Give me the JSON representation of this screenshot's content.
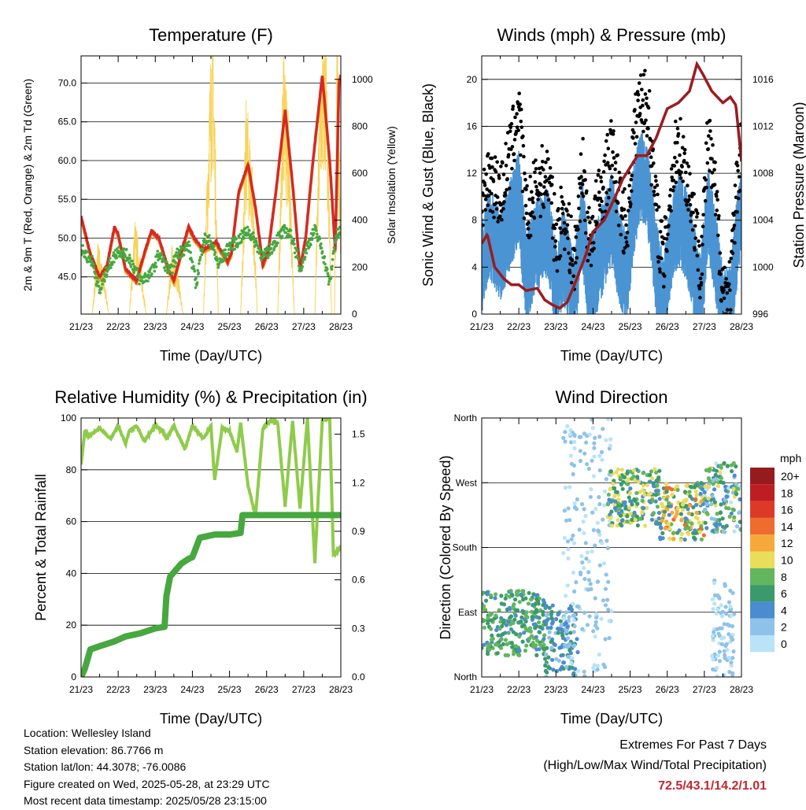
{
  "chart_data": [
    {
      "type": "line",
      "title": "Temperature (F)",
      "xlabel": "Time (Day/UTC)",
      "ylabel": "2m & 9m T (Red, Orange) & 2m Td (Green)",
      "ylabel_right": "Solar Insolation (Yellow)",
      "x_ticks": [
        "21/23",
        "22/23",
        "23/23",
        "24/23",
        "25/23",
        "26/23",
        "27/23",
        "28/23"
      ],
      "ylim": [
        40.2,
        73.5
      ],
      "y_ticks": [
        "45.0",
        "50.0",
        "55.0",
        "60.0",
        "65.0",
        "70.0"
      ],
      "y_tick_values": [
        45,
        50,
        55,
        60,
        65,
        70
      ],
      "ylim_right": [
        0,
        1100
      ],
      "y_ticks_right": [
        "0",
        "200",
        "400",
        "600",
        "800",
        "1000"
      ],
      "y_tick_values_right": [
        0,
        200,
        400,
        600,
        800,
        1000
      ],
      "grid": true,
      "colors": {
        "t2m": "#d42a22",
        "t9m": "#f39a2c",
        "td": "#46a83e",
        "solar": "#f6d35a"
      },
      "series": [
        {
          "key": "t2m",
          "x_days": [
            0,
            0.25,
            0.5,
            0.7,
            0.9,
            1.0,
            1.2,
            1.5,
            1.7,
            1.9,
            2.1,
            2.35,
            2.5,
            2.75,
            2.9,
            3.05,
            3.3,
            3.5,
            3.65,
            3.75,
            3.95,
            4.05,
            4.25,
            4.5,
            4.7,
            4.9,
            5.05,
            5.25,
            5.5,
            5.7,
            5.9,
            6.05,
            6.25,
            6.5,
            6.7,
            6.85,
            6.95,
            7.0
          ],
          "values": [
            52.8,
            48,
            45,
            46.5,
            51.5,
            50.5,
            46,
            44.5,
            48,
            51,
            50,
            46,
            44.5,
            49,
            51.5,
            50,
            48.5,
            49,
            49.5,
            48.5,
            47,
            48,
            56,
            59.5,
            54,
            46.5,
            48.5,
            56,
            66.5,
            57,
            46,
            50,
            60,
            71,
            60,
            48.5,
            70,
            71
          ]
        },
        {
          "key": "t9m",
          "x_days": [
            0,
            0.25,
            0.5,
            0.7,
            0.9,
            1.0,
            1.2,
            1.5,
            1.7,
            1.9,
            2.1,
            2.35,
            2.5,
            2.75,
            2.9,
            3.05,
            3.3,
            3.5,
            3.65,
            3.75,
            3.95,
            4.05,
            4.25,
            4.5,
            4.7,
            4.9,
            5.05,
            5.25,
            5.5,
            5.7,
            5.9,
            6.05,
            6.25,
            6.5,
            6.7,
            6.85,
            6.95,
            7.0
          ],
          "values": [
            52.4,
            47.6,
            44.6,
            46.1,
            51.1,
            50.1,
            45.6,
            44.1,
            47.6,
            50.6,
            49.6,
            45.6,
            44.1,
            48.6,
            51.1,
            49.6,
            48.1,
            48.6,
            49.1,
            48.1,
            46.6,
            47.6,
            55.6,
            59.1,
            53.6,
            46.1,
            48.1,
            55.6,
            66.1,
            56.6,
            45.6,
            49.6,
            59.6,
            70.6,
            59.6,
            48.1,
            69.6,
            70.6
          ]
        },
        {
          "key": "td",
          "x_days": [
            0,
            0.3,
            0.5,
            0.7,
            1.0,
            1.3,
            1.6,
            1.9,
            2.1,
            2.4,
            2.6,
            2.9,
            3.1,
            3.3,
            3.5,
            3.7,
            4.0,
            4.2,
            4.5,
            4.7,
            4.9,
            5.1,
            5.3,
            5.5,
            5.7,
            5.9,
            6.1,
            6.3,
            6.5,
            6.7,
            6.85,
            7.0
          ],
          "values": [
            48.5,
            47,
            43,
            46,
            48.5,
            47.5,
            44.5,
            45.5,
            48,
            45.5,
            48,
            49,
            44,
            50,
            49.5,
            46.5,
            49,
            49.5,
            51,
            49.5,
            47.5,
            48.5,
            50,
            51,
            50,
            46,
            49,
            51,
            48.5,
            44,
            50,
            51
          ]
        },
        {
          "key": "solar",
          "x_days": [
            0,
            0.3,
            0.45,
            0.6,
            0.75,
            1.3,
            1.45,
            1.6,
            1.75,
            2.3,
            2.45,
            2.6,
            2.75,
            3.3,
            3.42,
            3.55,
            3.7,
            4.3,
            4.45,
            4.6,
            4.75,
            5.3,
            5.45,
            5.6,
            5.75,
            6.3,
            6.45,
            6.6,
            6.75,
            6.83,
            6.9,
            7.0
          ],
          "values": [
            0,
            0,
            250,
            140,
            0,
            0,
            320,
            200,
            0,
            0,
            230,
            150,
            0,
            0,
            620,
            1080,
            0,
            0,
            720,
            550,
            0,
            0,
            880,
            640,
            0,
            0,
            860,
            940,
            0,
            0,
            1000,
            300
          ]
        }
      ]
    },
    {
      "type": "line",
      "title": "Winds (mph) & Pressure (mb)",
      "xlabel": "Time (Day/UTC)",
      "ylabel": "Sonic Wind & Gust (Blue, Black)",
      "ylabel_right": "Station Pressure (Maroon)",
      "x_ticks": [
        "21/23",
        "22/23",
        "23/23",
        "24/23",
        "25/23",
        "26/23",
        "27/23",
        "28/23"
      ],
      "ylim": [
        0,
        22
      ],
      "y_ticks": [
        "0",
        "4",
        "8",
        "12",
        "16",
        "20"
      ],
      "y_tick_values": [
        0,
        4,
        8,
        12,
        16,
        20
      ],
      "ylim_right": [
        996,
        1018
      ],
      "y_ticks_right": [
        "996",
        "1000",
        "1004",
        "1008",
        "1012",
        "1016"
      ],
      "y_tick_values_right": [
        996,
        1000,
        1004,
        1008,
        1012,
        1016
      ],
      "grid": true,
      "colors": {
        "wind": "#4a94d3",
        "gust": "#000000",
        "pressure": "#9b1c1f"
      },
      "series": [
        {
          "key": "pressure",
          "x_days": [
            0,
            0.15,
            0.35,
            0.6,
            0.8,
            1.0,
            1.2,
            1.5,
            1.7,
            1.9,
            2.1,
            2.3,
            2.5,
            2.8,
            3.0,
            3.3,
            3.6,
            3.8,
            4.0,
            4.2,
            4.45,
            4.7,
            5.0,
            5.3,
            5.6,
            5.8,
            5.95,
            6.2,
            6.5,
            6.7,
            6.85,
            7.0
          ],
          "values": [
            1002,
            1002.8,
            1000,
            999,
            998.5,
            998.5,
            998,
            998.2,
            997.2,
            996.8,
            996.5,
            997,
            998.5,
            1001,
            1003,
            1004,
            1006,
            1007.5,
            1008.5,
            1009.5,
            1009.5,
            1011,
            1013.5,
            1014,
            1015,
            1017.3,
            1016.5,
            1015,
            1014,
            1014.5,
            1013.8,
            1009
          ]
        },
        {
          "key": "wind",
          "x_days": [
            0,
            0.2,
            0.5,
            0.8,
            1.0,
            1.2,
            1.5,
            1.8,
            2.0,
            2.2,
            2.5,
            2.7,
            2.9,
            3.1,
            3.3,
            3.5,
            3.7,
            3.9,
            4.1,
            4.3,
            4.5,
            4.7,
            4.9,
            5.1,
            5.3,
            5.5,
            5.7,
            5.9,
            6.1,
            6.3,
            6.5,
            6.7,
            6.9,
            7.0
          ],
          "values": [
            5,
            8,
            6,
            9,
            11,
            4,
            7,
            8,
            3,
            6,
            2,
            9,
            3,
            5,
            7,
            9,
            6,
            4,
            10,
            13,
            11,
            5,
            2,
            7,
            9,
            8,
            5,
            2,
            10,
            6,
            1,
            1,
            8,
            10
          ]
        },
        {
          "key": "gust",
          "x_days": [
            0,
            0.2,
            0.5,
            0.8,
            1.0,
            1.2,
            1.5,
            1.8,
            2.0,
            2.2,
            2.5,
            2.7,
            2.9,
            3.1,
            3.3,
            3.5,
            3.7,
            3.9,
            4.1,
            4.3,
            4.5,
            4.7,
            4.9,
            5.1,
            5.3,
            5.5,
            5.7,
            5.9,
            6.1,
            6.3,
            6.5,
            6.7,
            6.9,
            7.0
          ],
          "values": [
            8,
            12,
            10,
            14,
            18,
            8,
            11,
            12,
            6,
            9,
            4,
            13,
            6,
            9,
            11,
            14,
            10,
            7,
            15,
            19,
            17,
            9,
            4,
            11,
            15,
            12,
            9,
            4,
            15,
            10,
            2,
            2,
            12,
            14
          ]
        }
      ]
    },
    {
      "type": "line",
      "title": "Relative Humidity (%) & Precipitation (in)",
      "xlabel": "Time (Day/UTC)",
      "ylabel": "Percent & Total Rainfall",
      "x_ticks": [
        "21/23",
        "22/23",
        "23/23",
        "24/23",
        "25/23",
        "26/23",
        "27/23",
        "28/23"
      ],
      "ylim": [
        0,
        100
      ],
      "y_ticks": [
        "0",
        "20",
        "40",
        "60",
        "80",
        "100"
      ],
      "y_tick_values": [
        0,
        20,
        40,
        60,
        80,
        100
      ],
      "ylim_right": [
        0,
        1.6
      ],
      "y_ticks_right": [
        "0.0",
        "0.3",
        "0.6",
        "0.9",
        "1.2",
        "1.5"
      ],
      "y_tick_values_right": [
        0,
        0.3,
        0.6,
        0.9,
        1.2,
        1.5
      ],
      "grid": true,
      "colors": {
        "rh": "#8fcb4a",
        "rain": "#46a83e"
      },
      "series": [
        {
          "key": "rh",
          "x_days": [
            0,
            0.1,
            0.2,
            0.5,
            0.8,
            1.0,
            1.2,
            1.3,
            1.5,
            1.7,
            2.0,
            2.2,
            2.3,
            2.5,
            2.8,
            3.0,
            3.3,
            3.5,
            3.6,
            3.8,
            4.0,
            4.2,
            4.3,
            4.5,
            4.7,
            4.9,
            5.1,
            5.3,
            5.5,
            5.7,
            5.9,
            6.1,
            6.3,
            6.5,
            6.7,
            6.8,
            7.0
          ],
          "values": [
            82,
            95,
            93,
            96,
            92,
            97,
            90,
            95,
            97,
            91,
            97,
            95,
            92,
            97,
            88,
            97,
            92,
            97,
            76,
            96,
            95,
            87,
            98,
            74,
            62,
            96,
            99,
            98,
            66,
            99,
            65,
            100,
            44,
            99,
            100,
            47,
            50
          ]
        },
        {
          "key": "rain",
          "x_days": [
            0,
            0.1,
            0.25,
            0.5,
            0.9,
            1.2,
            1.6,
            2.0,
            2.25,
            2.3,
            2.4,
            2.7,
            2.9,
            3.0,
            3.2,
            3.6,
            4.0,
            4.3,
            4.35,
            5.0,
            7.0
          ],
          "values": [
            0,
            0.05,
            0.17,
            0.19,
            0.22,
            0.25,
            0.27,
            0.3,
            0.31,
            0.5,
            0.62,
            0.7,
            0.73,
            0.74,
            0.86,
            0.88,
            0.88,
            0.89,
            1.0,
            1.0,
            1.0
          ]
        }
      ]
    },
    {
      "type": "scatter",
      "title": "Wind Direction",
      "xlabel": "Time (Day/UTC)",
      "ylabel": "Direction (Colored By Speed)",
      "x_ticks": [
        "21/23",
        "22/23",
        "23/23",
        "24/23",
        "25/23",
        "26/23",
        "27/23",
        "28/23"
      ],
      "ylim": [
        0,
        360
      ],
      "y_ticks": [
        "North",
        "East",
        "South",
        "West",
        "North"
      ],
      "y_tick_values": [
        0,
        90,
        180,
        270,
        360
      ],
      "grid": true,
      "colorbar": {
        "title": "mph",
        "labels": [
          "0",
          "2",
          "4",
          "6",
          "8",
          "10",
          "12",
          "14",
          "16",
          "18",
          "20+"
        ],
        "colors": [
          "#b9e3f8",
          "#8ec2ea",
          "#4a8ccf",
          "#3b9a6a",
          "#62b65e",
          "#e9dd5a",
          "#f6a93a",
          "#ee6c2d",
          "#dc3a26",
          "#bd1e24",
          "#961b1f"
        ]
      },
      "clusters": [
        {
          "x": [
            0.0,
            1.7
          ],
          "y": [
            30,
            120
          ],
          "speed": [
            4,
            9
          ]
        },
        {
          "x": [
            1.7,
            2.6
          ],
          "y": [
            0,
            100
          ],
          "speed": [
            2,
            7
          ]
        },
        {
          "x": [
            2.2,
            3.5
          ],
          "y": [
            0,
            360
          ],
          "speed": [
            0,
            3
          ]
        },
        {
          "x": [
            3.4,
            4.8
          ],
          "y": [
            210,
            290
          ],
          "speed": [
            3,
            11
          ]
        },
        {
          "x": [
            4.8,
            6.0
          ],
          "y": [
            190,
            270
          ],
          "speed": [
            3,
            14
          ]
        },
        {
          "x": [
            6.0,
            7.0
          ],
          "y": [
            200,
            300
          ],
          "speed": [
            0,
            10
          ]
        },
        {
          "x": [
            6.2,
            6.8
          ],
          "y": [
            0,
            140
          ],
          "speed": [
            0,
            3
          ]
        }
      ]
    }
  ],
  "info": {
    "location": "Location: Wellesley Island",
    "elevation": "Station elevation: 86.7766 m",
    "latlon": "Station lat/lon: 44.3078; -76.0086",
    "created": "Figure created on Wed, 2025-05-28, at 23:29 UTC",
    "recent": "Most recent data timestamp: 2025/05/28 23:15:00"
  },
  "extremes": {
    "title": "Extremes For Past 7 Days",
    "subtitle": "(High/Low/Max Wind/Total Precipitation)",
    "values": "72.5/43.1/14.2/1.01"
  }
}
